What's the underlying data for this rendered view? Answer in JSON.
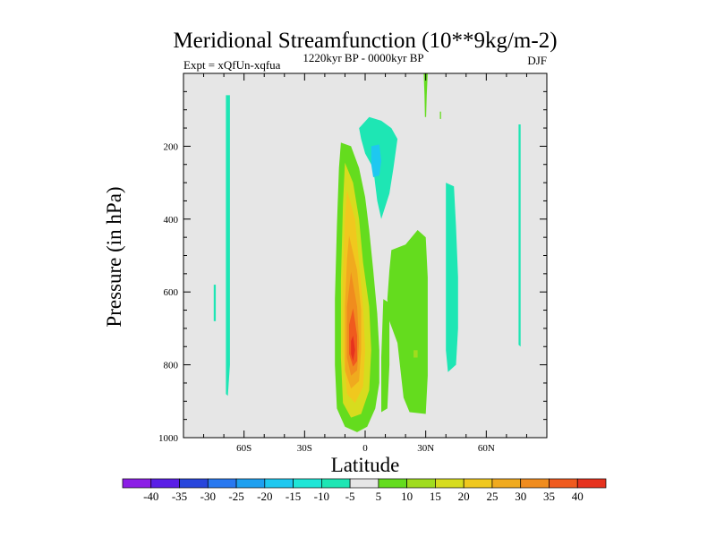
{
  "chart_data": {
    "type": "heatmap",
    "title": "Meridional Streamfunction (10**9kg/m-2)",
    "experiment": "Expt = xQfUn-xqfua",
    "period": "1220kyr BP - 0000kyr BP",
    "season": "DJF",
    "xlabel": "Latitude",
    "ylabel": "Pressure (in hPa)",
    "xlim": [
      -90,
      90
    ],
    "ylim": [
      0,
      1000
    ],
    "x_ticks": [
      {
        "value": -60,
        "label": "60S"
      },
      {
        "value": -30,
        "label": "30S"
      },
      {
        "value": 0,
        "label": "0"
      },
      {
        "value": 30,
        "label": "30N"
      },
      {
        "value": 60,
        "label": "60N"
      }
    ],
    "y_ticks": [
      {
        "value": 200,
        "label": "200"
      },
      {
        "value": 400,
        "label": "400"
      },
      {
        "value": 600,
        "label": "600"
      },
      {
        "value": 800,
        "label": "800"
      },
      {
        "value": 1000,
        "label": "1000"
      }
    ],
    "colorbar": {
      "labels": [
        "-40",
        "-35",
        "-30",
        "-25",
        "-20",
        "-15",
        "-10",
        "-5",
        "5",
        "10",
        "15",
        "20",
        "25",
        "30",
        "35",
        "40"
      ],
      "colors": [
        "#8c1ee6",
        "#5a1ee6",
        "#2846dc",
        "#2878f0",
        "#1ea0f0",
        "#1ec8f0",
        "#1ee6d7",
        "#1ee6b4",
        "#e6e6e6",
        "#64dc1e",
        "#a0dc1e",
        "#d7dc1e",
        "#f0c81e",
        "#f0aa1e",
        "#f08c1e",
        "#f05a1e",
        "#e6321e"
      ]
    },
    "background_color": "#e6e6e6",
    "regions": [
      {
        "name": "tropical-cell-outer",
        "value": 10,
        "color": "#64dc1e",
        "points": [
          [
            -12,
            190
          ],
          [
            -7,
            200
          ],
          [
            -3,
            260
          ],
          [
            0,
            340
          ],
          [
            2,
            430
          ],
          [
            4,
            540
          ],
          [
            6,
            660
          ],
          [
            7,
            760
          ],
          [
            7,
            850
          ],
          [
            5,
            920
          ],
          [
            1,
            970
          ],
          [
            -4,
            985
          ],
          [
            -10,
            970
          ],
          [
            -14,
            920
          ],
          [
            -15,
            800
          ],
          [
            -15,
            620
          ],
          [
            -14,
            420
          ],
          [
            -13,
            260
          ]
        ]
      },
      {
        "name": "tropical-cell-15",
        "value": 15,
        "color": "#d7dc1e",
        "points": [
          [
            -10,
            245
          ],
          [
            -6,
            300
          ],
          [
            -3,
            400
          ],
          [
            -1,
            520
          ],
          [
            2,
            640
          ],
          [
            3,
            760
          ],
          [
            2,
            870
          ],
          [
            -2,
            935
          ],
          [
            -7,
            945
          ],
          [
            -11,
            905
          ],
          [
            -12,
            780
          ],
          [
            -12,
            570
          ],
          [
            -11,
            360
          ]
        ]
      },
      {
        "name": "tropical-cell-20",
        "value": 20,
        "color": "#f0c81e",
        "points": [
          [
            -9,
            320
          ],
          [
            -5,
            400
          ],
          [
            -3,
            520
          ],
          [
            -1,
            640
          ],
          [
            0,
            760
          ],
          [
            -1,
            860
          ],
          [
            -5,
            905
          ],
          [
            -9,
            880
          ],
          [
            -11,
            760
          ],
          [
            -11,
            560
          ],
          [
            -10,
            400
          ]
        ]
      },
      {
        "name": "tropical-cell-25",
        "value": 25,
        "color": "#f0aa1e",
        "points": [
          [
            -8,
            445
          ],
          [
            -4,
            540
          ],
          [
            -2,
            650
          ],
          [
            -2,
            760
          ],
          [
            -3,
            845
          ],
          [
            -7,
            865
          ],
          [
            -10,
            815
          ],
          [
            -10,
            640
          ],
          [
            -9,
            510
          ]
        ]
      },
      {
        "name": "tropical-cell-30",
        "value": 30,
        "color": "#f08c1e",
        "points": [
          [
            -7,
            545
          ],
          [
            -4,
            640
          ],
          [
            -3,
            740
          ],
          [
            -4,
            815
          ],
          [
            -7,
            830
          ],
          [
            -9,
            780
          ],
          [
            -9,
            640
          ]
        ]
      },
      {
        "name": "tropical-cell-35",
        "value": 35,
        "color": "#f05a1e",
        "points": [
          [
            -6,
            645
          ],
          [
            -4,
            720
          ],
          [
            -4,
            790
          ],
          [
            -6,
            805
          ],
          [
            -8,
            770
          ],
          [
            -8,
            690
          ]
        ]
      },
      {
        "name": "tropical-cell-40",
        "value": 40,
        "color": "#e6321e",
        "points": [
          [
            -6,
            720
          ],
          [
            -5,
            760
          ],
          [
            -6,
            790
          ],
          [
            -7,
            770
          ],
          [
            -7,
            735
          ]
        ]
      },
      {
        "name": "ne-cell-green",
        "value": 10,
        "color": "#64dc1e",
        "points": [
          [
            13,
            485
          ],
          [
            20,
            470
          ],
          [
            26,
            430
          ],
          [
            30,
            450
          ],
          [
            31,
            560
          ],
          [
            31,
            700
          ],
          [
            31,
            830
          ],
          [
            30,
            935
          ],
          [
            22,
            930
          ],
          [
            19,
            890
          ],
          [
            16,
            740
          ],
          [
            12,
            680
          ],
          [
            11,
            620
          ],
          [
            12,
            540
          ]
        ]
      },
      {
        "name": "ne-cell-green-patch",
        "value": 10,
        "color": "#64dc1e",
        "points": [
          [
            9,
            620
          ],
          [
            12,
            630
          ],
          [
            12,
            800
          ],
          [
            11,
            920
          ],
          [
            8,
            930
          ],
          [
            8,
            780
          ]
        ]
      },
      {
        "name": "upper-teal-cell",
        "value": -5,
        "color": "#1ee6b4",
        "points": [
          [
            -3,
            150
          ],
          [
            2,
            120
          ],
          [
            8,
            130
          ],
          [
            13,
            150
          ],
          [
            16,
            180
          ],
          [
            14,
            260
          ],
          [
            12,
            330
          ],
          [
            8,
            400
          ],
          [
            6,
            350
          ],
          [
            4,
            260
          ],
          [
            0,
            220
          ],
          [
            -2,
            180
          ]
        ]
      },
      {
        "name": "upper-teal-core",
        "value": -10,
        "color": "#1ec8f0",
        "points": [
          [
            3,
            200
          ],
          [
            7,
            195
          ],
          [
            8,
            240
          ],
          [
            7,
            280
          ],
          [
            4,
            285
          ],
          [
            3,
            250
          ]
        ]
      },
      {
        "name": "mid-lat-teal-cell",
        "value": -5,
        "color": "#1ee6b4",
        "points": [
          [
            40,
            300
          ],
          [
            44,
            310
          ],
          [
            45,
            420
          ],
          [
            46,
            560
          ],
          [
            46,
            700
          ],
          [
            45,
            800
          ],
          [
            41,
            820
          ],
          [
            40,
            760
          ],
          [
            40,
            600
          ],
          [
            40,
            440
          ]
        ]
      },
      {
        "name": "sh-thin-band",
        "value": -5,
        "color": "#1ee6b4",
        "points": [
          [
            -69,
            60
          ],
          [
            -67,
            60
          ],
          [
            -67,
            200
          ],
          [
            -67,
            500
          ],
          [
            -67,
            800
          ],
          [
            -68,
            885
          ],
          [
            -69,
            880
          ],
          [
            -69,
            600
          ],
          [
            -69,
            300
          ]
        ]
      },
      {
        "name": "sh-small-mark",
        "value": -5,
        "color": "#1ee6b4",
        "points": [
          [
            -75,
            580
          ],
          [
            -74,
            580
          ],
          [
            -74,
            680
          ],
          [
            -75,
            680
          ]
        ]
      },
      {
        "name": "nh-thin-band",
        "value": -5,
        "color": "#1ee6b4",
        "points": [
          [
            76,
            140
          ],
          [
            77,
            140
          ],
          [
            77,
            420
          ],
          [
            77,
            750
          ],
          [
            76,
            745
          ],
          [
            76,
            450
          ]
        ]
      },
      {
        "name": "top-green-spike",
        "value": 10,
        "color": "#64dc1e",
        "points": [
          [
            29,
            0
          ],
          [
            31,
            0
          ],
          [
            30.5,
            60
          ],
          [
            30.2,
            120
          ],
          [
            29.6,
            120
          ],
          [
            29.4,
            60
          ]
        ]
      },
      {
        "name": "top-green-dot",
        "value": 10,
        "color": "#64dc1e",
        "points": [
          [
            37,
            105
          ],
          [
            37.6,
            105
          ],
          [
            37.6,
            125
          ],
          [
            37,
            125
          ]
        ]
      },
      {
        "name": "lower-yellow-dot",
        "value": 15,
        "color": "#a0dc1e",
        "points": [
          [
            24,
            760
          ],
          [
            26,
            760
          ],
          [
            26,
            780
          ],
          [
            24,
            780
          ]
        ]
      }
    ]
  }
}
